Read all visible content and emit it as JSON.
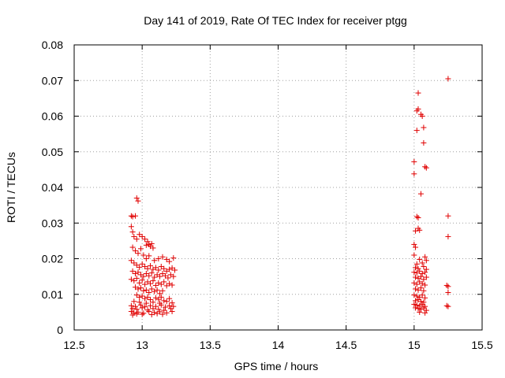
{
  "chart_data": {
    "type": "scatter",
    "title": "Day 141 of 2019, Rate Of TEC Index for receiver ptgg",
    "xlabel": "GPS time / hours",
    "ylabel": "ROTI / TECUs",
    "xlim": [
      12.5,
      15.5
    ],
    "ylim": [
      0,
      0.08
    ],
    "xticks": [
      12.5,
      13,
      13.5,
      14,
      14.5,
      15,
      15.5
    ],
    "xtick_labels": [
      "12.5",
      "13",
      "13.5",
      "14",
      "14.5",
      "15",
      "15.5"
    ],
    "yticks": [
      0,
      0.01,
      0.02,
      0.03,
      0.04,
      0.05,
      0.06,
      0.07,
      0.08
    ],
    "ytick_labels": [
      "0",
      "0.01",
      "0.02",
      "0.03",
      "0.04",
      "0.05",
      "0.06",
      "0.07",
      "0.08"
    ],
    "grid": true,
    "marker": "+",
    "color": "#e00000",
    "series": [
      {
        "name": "ROTI",
        "points": [
          [
            12.92,
            0.032
          ],
          [
            12.93,
            0.0318
          ],
          [
            12.95,
            0.032
          ],
          [
            12.96,
            0.037
          ],
          [
            12.97,
            0.0362
          ],
          [
            12.92,
            0.029
          ],
          [
            12.93,
            0.0275
          ],
          [
            12.94,
            0.0262
          ],
          [
            12.96,
            0.0255
          ],
          [
            12.98,
            0.0268
          ],
          [
            13.0,
            0.0262
          ],
          [
            13.02,
            0.0255
          ],
          [
            13.04,
            0.0248
          ],
          [
            13.05,
            0.024
          ],
          [
            13.07,
            0.0242
          ],
          [
            13.08,
            0.023
          ],
          [
            13.06,
            0.0235
          ],
          [
            13.03,
            0.0238
          ],
          [
            12.93,
            0.0232
          ],
          [
            12.95,
            0.0222
          ],
          [
            12.97,
            0.0215
          ],
          [
            12.99,
            0.0228
          ],
          [
            13.01,
            0.021
          ],
          [
            13.03,
            0.02
          ],
          [
            13.05,
            0.0208
          ],
          [
            13.09,
            0.0195
          ],
          [
            13.12,
            0.02
          ],
          [
            13.15,
            0.0205
          ],
          [
            13.18,
            0.0198
          ],
          [
            13.2,
            0.0192
          ],
          [
            13.23,
            0.0202
          ],
          [
            12.92,
            0.0195
          ],
          [
            12.94,
            0.0188
          ],
          [
            12.96,
            0.0182
          ],
          [
            12.98,
            0.0176
          ],
          [
            13.0,
            0.0185
          ],
          [
            13.02,
            0.0178
          ],
          [
            13.04,
            0.0172
          ],
          [
            13.06,
            0.018
          ],
          [
            13.08,
            0.017
          ],
          [
            13.1,
            0.0175
          ],
          [
            13.12,
            0.0168
          ],
          [
            13.14,
            0.0178
          ],
          [
            13.16,
            0.0172
          ],
          [
            13.18,
            0.0165
          ],
          [
            13.2,
            0.017
          ],
          [
            13.22,
            0.0174
          ],
          [
            13.24,
            0.0168
          ],
          [
            12.93,
            0.0165
          ],
          [
            12.95,
            0.0158
          ],
          [
            12.97,
            0.0162
          ],
          [
            12.99,
            0.0155
          ],
          [
            13.01,
            0.015
          ],
          [
            13.03,
            0.0158
          ],
          [
            13.05,
            0.0152
          ],
          [
            13.07,
            0.016
          ],
          [
            13.09,
            0.0148
          ],
          [
            13.11,
            0.0155
          ],
          [
            13.13,
            0.015
          ],
          [
            13.15,
            0.0158
          ],
          [
            13.17,
            0.0152
          ],
          [
            13.19,
            0.0146
          ],
          [
            13.21,
            0.0155
          ],
          [
            13.23,
            0.015
          ],
          [
            12.92,
            0.0142
          ],
          [
            12.94,
            0.0138
          ],
          [
            12.96,
            0.0145
          ],
          [
            12.98,
            0.0132
          ],
          [
            13.0,
            0.014
          ],
          [
            13.02,
            0.0128
          ],
          [
            13.04,
            0.0135
          ],
          [
            13.06,
            0.013
          ],
          [
            13.08,
            0.0138
          ],
          [
            13.1,
            0.0125
          ],
          [
            13.12,
            0.0132
          ],
          [
            13.14,
            0.0128
          ],
          [
            13.16,
            0.0135
          ],
          [
            13.18,
            0.0124
          ],
          [
            13.2,
            0.013
          ],
          [
            13.22,
            0.0126
          ],
          [
            12.95,
            0.012
          ],
          [
            12.97,
            0.0115
          ],
          [
            12.99,
            0.0118
          ],
          [
            13.01,
            0.011
          ],
          [
            13.03,
            0.0112
          ],
          [
            13.05,
            0.0105
          ],
          [
            13.07,
            0.0115
          ],
          [
            13.09,
            0.0108
          ],
          [
            13.11,
            0.0112
          ],
          [
            13.13,
            0.0102
          ],
          [
            13.15,
            0.011
          ],
          [
            12.96,
            0.0098
          ],
          [
            12.98,
            0.0092
          ],
          [
            13.0,
            0.0095
          ],
          [
            13.02,
            0.0088
          ],
          [
            13.04,
            0.0092
          ],
          [
            13.06,
            0.0085
          ],
          [
            13.1,
            0.009
          ],
          [
            13.12,
            0.0086
          ],
          [
            13.14,
            0.0092
          ],
          [
            13.16,
            0.0082
          ],
          [
            13.2,
            0.0088
          ],
          [
            12.94,
            0.008
          ],
          [
            12.98,
            0.0078
          ],
          [
            13.03,
            0.0075
          ],
          [
            13.08,
            0.0078
          ],
          [
            13.13,
            0.0075
          ],
          [
            13.18,
            0.008
          ],
          [
            13.22,
            0.0076
          ],
          [
            12.92,
            0.0068
          ],
          [
            12.95,
            0.0066
          ],
          [
            12.99,
            0.007
          ],
          [
            13.02,
            0.0065
          ],
          [
            13.06,
            0.0068
          ],
          [
            13.1,
            0.0066
          ],
          [
            13.14,
            0.007
          ],
          [
            13.17,
            0.0064
          ],
          [
            13.2,
            0.0068
          ],
          [
            13.23,
            0.0066
          ],
          [
            12.93,
            0.006
          ],
          [
            12.96,
            0.0058
          ],
          [
            13.0,
            0.0062
          ],
          [
            13.04,
            0.0056
          ],
          [
            13.08,
            0.006
          ],
          [
            13.12,
            0.0058
          ],
          [
            13.16,
            0.0055
          ],
          [
            13.21,
            0.006
          ],
          [
            12.92,
            0.0052
          ],
          [
            12.94,
            0.0048
          ],
          [
            12.97,
            0.005
          ],
          [
            13.01,
            0.0047
          ],
          [
            13.05,
            0.0052
          ],
          [
            13.09,
            0.0049
          ],
          [
            13.13,
            0.0051
          ],
          [
            13.18,
            0.0048
          ],
          [
            13.22,
            0.0052
          ],
          [
            12.93,
            0.0042
          ],
          [
            12.96,
            0.0045
          ],
          [
            13.0,
            0.0044
          ],
          [
            13.07,
            0.0043
          ],
          [
            13.11,
            0.0046
          ],
          [
            13.15,
            0.0044
          ],
          [
            15.25,
            0.0705
          ],
          [
            15.03,
            0.0665
          ],
          [
            15.03,
            0.062
          ],
          [
            15.02,
            0.0615
          ],
          [
            15.05,
            0.0605
          ],
          [
            15.06,
            0.06
          ],
          [
            15.02,
            0.056
          ],
          [
            15.07,
            0.0568
          ],
          [
            15.07,
            0.0525
          ],
          [
            15.0,
            0.0472
          ],
          [
            15.08,
            0.0458
          ],
          [
            15.09,
            0.0455
          ],
          [
            15.0,
            0.0438
          ],
          [
            15.05,
            0.0382
          ],
          [
            15.25,
            0.032
          ],
          [
            15.02,
            0.0318
          ],
          [
            15.03,
            0.0315
          ],
          [
            15.01,
            0.0278
          ],
          [
            15.04,
            0.028
          ],
          [
            15.03,
            0.0285
          ],
          [
            15.25,
            0.0262
          ],
          [
            15.0,
            0.024
          ],
          [
            15.01,
            0.0232
          ],
          [
            15.0,
            0.021
          ],
          [
            15.08,
            0.0205
          ],
          [
            15.04,
            0.0198
          ],
          [
            15.09,
            0.0195
          ],
          [
            15.02,
            0.0185
          ],
          [
            15.06,
            0.0188
          ],
          [
            15.01,
            0.0175
          ],
          [
            15.03,
            0.0172
          ],
          [
            15.07,
            0.0178
          ],
          [
            15.09,
            0.017
          ],
          [
            15.0,
            0.0162
          ],
          [
            15.02,
            0.016
          ],
          [
            15.04,
            0.0165
          ],
          [
            15.06,
            0.0158
          ],
          [
            15.08,
            0.0162
          ],
          [
            15.01,
            0.0148
          ],
          [
            15.03,
            0.0145
          ],
          [
            15.05,
            0.015
          ],
          [
            15.07,
            0.0142
          ],
          [
            15.09,
            0.0148
          ],
          [
            15.0,
            0.0132
          ],
          [
            15.02,
            0.0128
          ],
          [
            15.04,
            0.0135
          ],
          [
            15.06,
            0.013
          ],
          [
            15.08,
            0.0126
          ],
          [
            15.24,
            0.0125
          ],
          [
            15.25,
            0.0122
          ],
          [
            15.01,
            0.0115
          ],
          [
            15.03,
            0.0112
          ],
          [
            15.05,
            0.0118
          ],
          [
            15.07,
            0.011
          ],
          [
            15.25,
            0.0105
          ],
          [
            15.0,
            0.0098
          ],
          [
            15.02,
            0.0095
          ],
          [
            15.04,
            0.0092
          ],
          [
            15.06,
            0.0098
          ],
          [
            15.08,
            0.009
          ],
          [
            15.01,
            0.0082
          ],
          [
            15.03,
            0.0085
          ],
          [
            15.05,
            0.008
          ],
          [
            15.07,
            0.0078
          ],
          [
            15.0,
            0.0072
          ],
          [
            15.02,
            0.007
          ],
          [
            15.04,
            0.0068
          ],
          [
            15.06,
            0.0072
          ],
          [
            15.08,
            0.0066
          ],
          [
            15.24,
            0.0068
          ],
          [
            15.25,
            0.0066
          ],
          [
            15.01,
            0.0062
          ],
          [
            15.03,
            0.006
          ],
          [
            15.05,
            0.0058
          ],
          [
            15.07,
            0.0062
          ],
          [
            15.09,
            0.0055
          ],
          [
            15.04,
            0.005
          ],
          [
            15.08,
            0.0048
          ]
        ]
      }
    ]
  }
}
